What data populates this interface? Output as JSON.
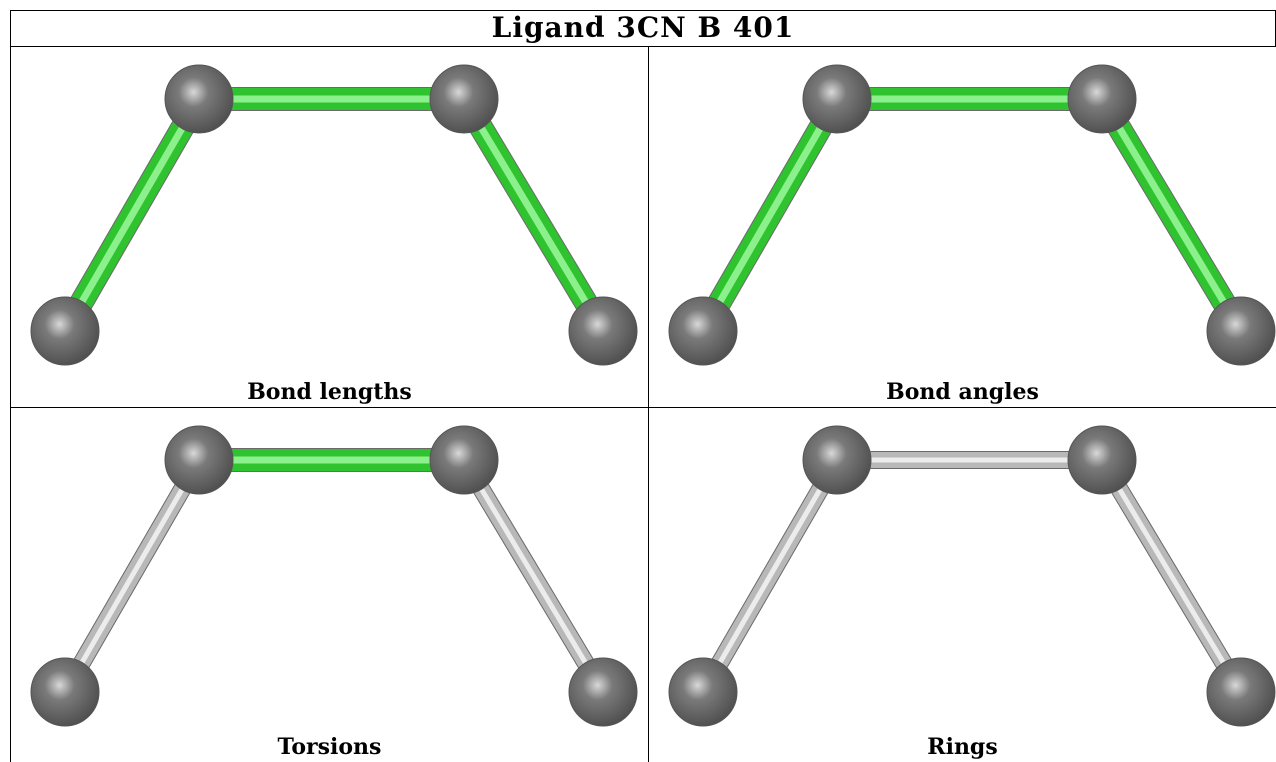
{
  "title": "Ligand 3CN B 401",
  "panels": [
    {
      "caption": "Bond lengths",
      "bond_colors": [
        "highlight",
        "highlight",
        "highlight"
      ]
    },
    {
      "caption": "Bond angles",
      "bond_colors": [
        "highlight",
        "highlight",
        "highlight"
      ]
    },
    {
      "caption": "Torsions",
      "bond_colors": [
        "neutral",
        "highlight",
        "neutral"
      ]
    },
    {
      "caption": "Rings",
      "bond_colors": [
        "neutral",
        "neutral",
        "neutral"
      ]
    }
  ],
  "colors": {
    "highlight": "#2fc42f",
    "highlight_light": "#8cf08c",
    "neutral": "#b8b8b8",
    "neutral_light": "#ececec",
    "atom": "#7a7a7a",
    "atom_shadow": "#4f4f4f",
    "atom_highlight": "#d8d8d8"
  }
}
